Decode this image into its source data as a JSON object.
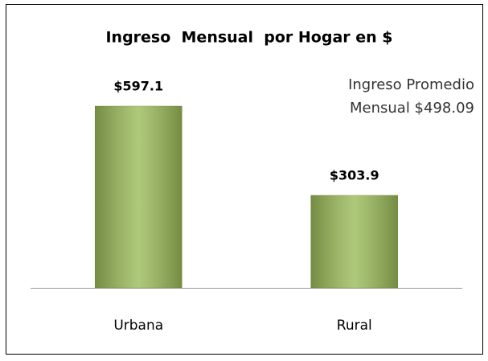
{
  "chart_data": {
    "type": "bar",
    "title": "Ingreso  Mensual  por Hogar en $",
    "categories": [
      "Urbana",
      "Rural"
    ],
    "values": [
      597.1,
      303.9
    ],
    "value_labels": [
      "$597.1",
      "$303.9"
    ],
    "color": "#9bbb59",
    "annotation": [
      "Ingreso Promedio",
      "Mensual $498.09"
    ]
  }
}
